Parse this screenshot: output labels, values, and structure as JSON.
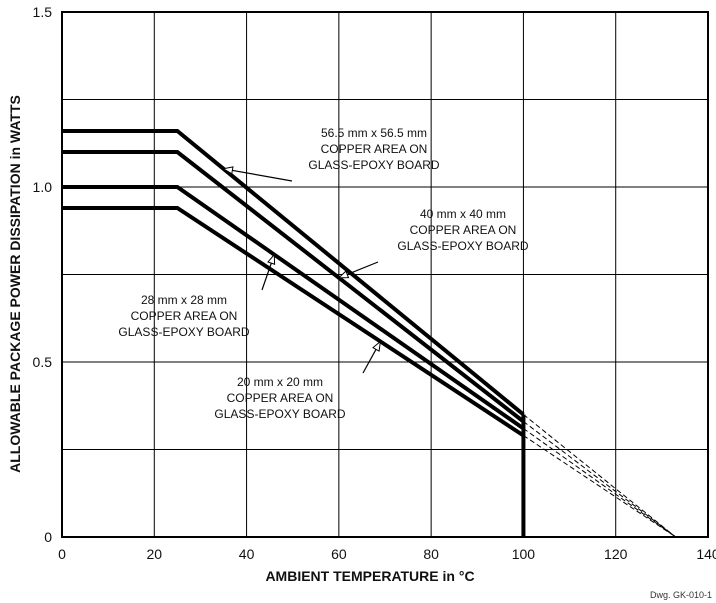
{
  "chart_data": {
    "type": "line",
    "xlabel": "AMBIENT TEMPERATURE in °C",
    "ylabel": "ALLOWABLE PACKAGE POWER DISSIPATION in WATTS",
    "xlim": [
      0,
      140
    ],
    "ylim": [
      0,
      1.5
    ],
    "x_ticks": [
      "0",
      "20",
      "40",
      "60",
      "80",
      "100",
      "120",
      "140"
    ],
    "y_ticks": [
      "0",
      "0.5",
      "1.0",
      "1.5"
    ],
    "grid": true,
    "drawing_number": "Dwg. GK-010-1",
    "series": [
      {
        "name": "56.5 mm x 56.5 mm COPPER AREA ON GLASS-EPOXY BOARD",
        "x": [
          0,
          25,
          100
        ],
        "y": [
          1.16,
          1.16,
          0.35
        ],
        "extrapolated_to": [
          133,
          0
        ]
      },
      {
        "name": "40 mm x 40 mm COPPER AREA ON GLASS-EPOXY BOARD",
        "x": [
          0,
          25,
          100
        ],
        "y": [
          1.1,
          1.1,
          0.33
        ],
        "extrapolated_to": [
          133,
          0
        ]
      },
      {
        "name": "28 mm x 28 mm COPPER AREA ON GLASS-EPOXY BOARD",
        "x": [
          0,
          25,
          100
        ],
        "y": [
          1.0,
          1.0,
          0.31
        ],
        "extrapolated_to": [
          133,
          0
        ]
      },
      {
        "name": "20 mm x 20 mm COPPER AREA ON GLASS-EPOXY BOARD",
        "x": [
          0,
          25,
          100
        ],
        "y": [
          0.94,
          0.94,
          0.29
        ],
        "extrapolated_to": [
          133,
          0
        ]
      }
    ],
    "annotations": [
      {
        "lines": [
          "56.5 mm x 56.5 mm",
          "COPPER AREA ON",
          "GLASS-EPOXY BOARD"
        ],
        "series": 0
      },
      {
        "lines": [
          "40 mm x 40 mm",
          "COPPER AREA ON",
          "GLASS-EPOXY BOARD"
        ],
        "series": 1
      },
      {
        "lines": [
          "28 mm x 28 mm",
          "COPPER AREA ON",
          "GLASS-EPOXY BOARD"
        ],
        "series": 2
      },
      {
        "lines": [
          "20 mm x 20 mm",
          "COPPER AREA ON",
          "GLASS-EPOXY BOARD"
        ],
        "series": 3
      }
    ]
  }
}
